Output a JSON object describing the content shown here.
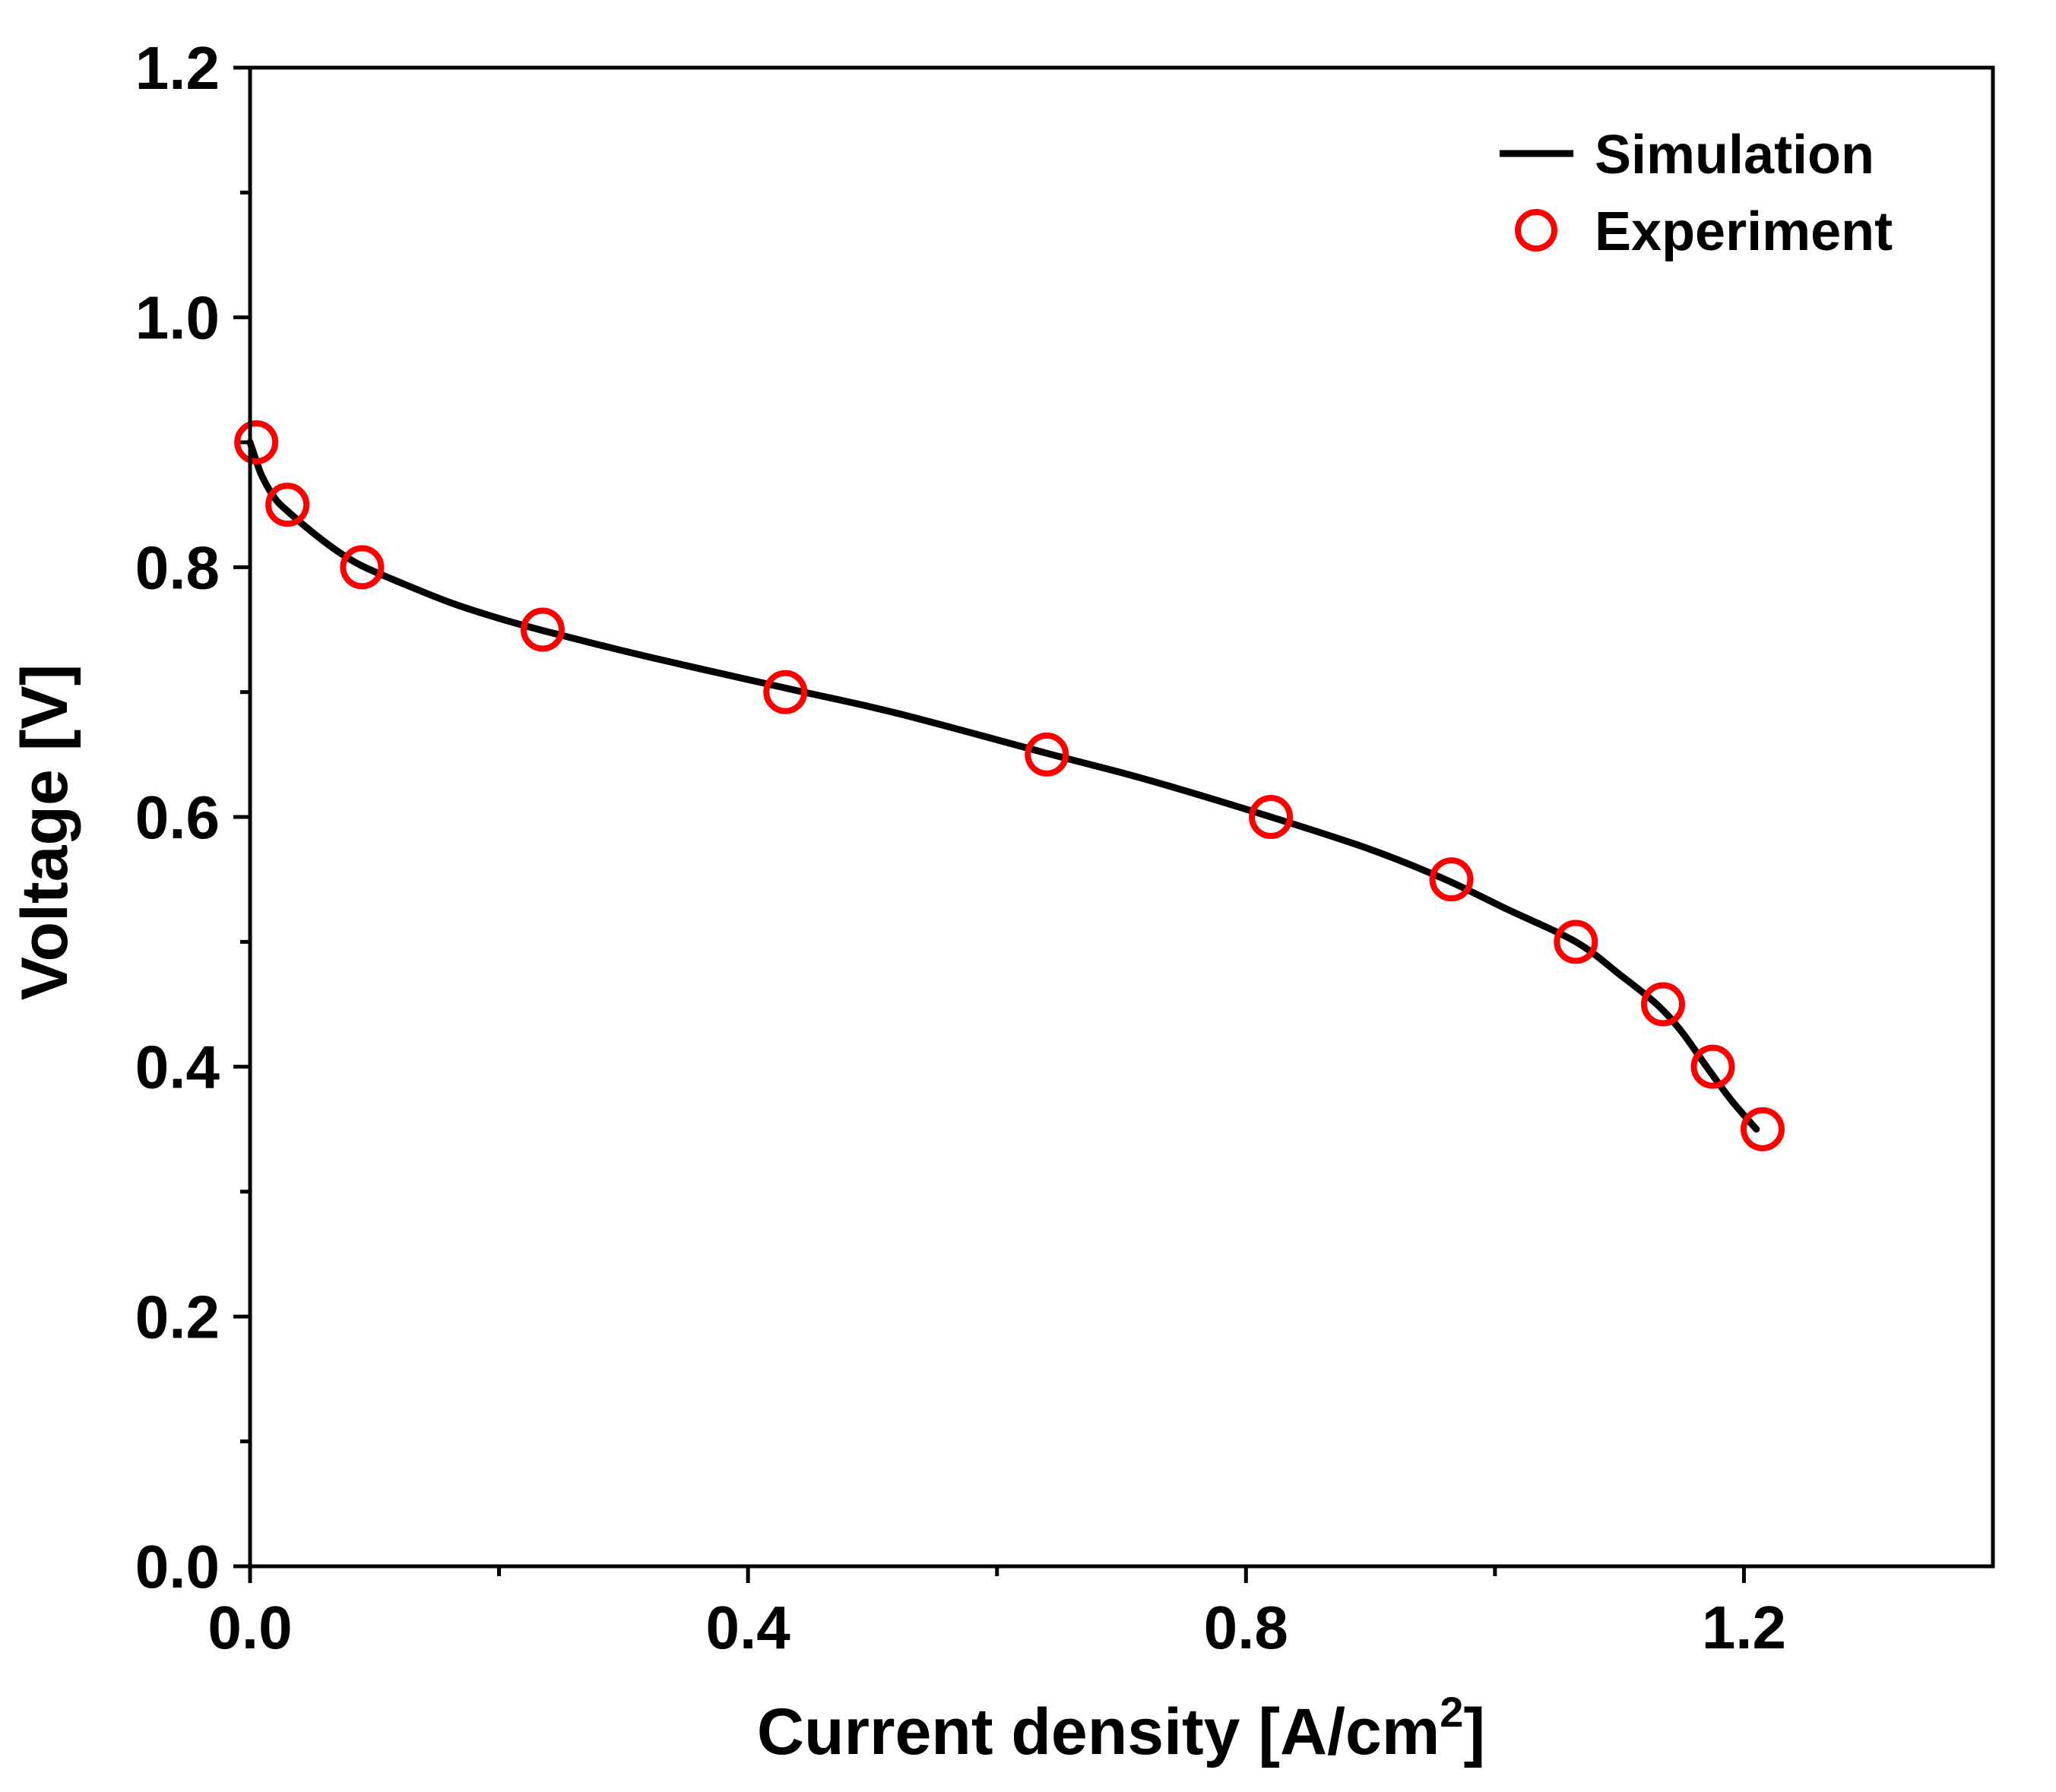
{
  "chart_data": {
    "type": "line",
    "xlabel_main": "Current density [A/cm",
    "xlabel_sup": "2",
    "xlabel_tail": "]",
    "ylabel": "Voltage [V]",
    "xlim": [
      0.0,
      1.4
    ],
    "ylim": [
      0.0,
      1.2
    ],
    "x_ticks": [
      0.0,
      0.4,
      0.8,
      1.2
    ],
    "x_tick_labels": [
      "0.0",
      "0.4",
      "0.8",
      "1.2"
    ],
    "x_minor_ticks": [
      0.2,
      0.6,
      1.0
    ],
    "y_ticks": [
      0.0,
      0.2,
      0.4,
      0.6,
      0.8,
      1.0,
      1.2
    ],
    "y_tick_labels": [
      "0.0",
      "0.2",
      "0.4",
      "0.6",
      "0.8",
      "1.0",
      "1.2"
    ],
    "y_minor_ticks": [
      0.1,
      0.3,
      0.5,
      0.7,
      0.9,
      1.1
    ],
    "legend_position": "top-right",
    "legend": {
      "simulation": "Simulation",
      "experiment": "Experiment"
    },
    "series": [
      {
        "name": "Simulation",
        "style": "line",
        "color": "#000000",
        "x": [
          0.0,
          0.005,
          0.01,
          0.02,
          0.03,
          0.05,
          0.07,
          0.09,
          0.12,
          0.16,
          0.2,
          0.24,
          0.3,
          0.36,
          0.44,
          0.52,
          0.64,
          0.72,
          0.82,
          0.9,
          0.96,
          1.01,
          1.065,
          1.1,
          1.13,
          1.15,
          1.17,
          1.19,
          1.21
        ],
        "y": [
          0.9,
          0.885,
          0.872,
          0.855,
          0.845,
          0.828,
          0.813,
          0.801,
          0.788,
          0.772,
          0.759,
          0.748,
          0.733,
          0.719,
          0.701,
          0.683,
          0.651,
          0.63,
          0.6,
          0.574,
          0.55,
          0.526,
          0.5,
          0.474,
          0.45,
          0.428,
          0.4,
          0.373,
          0.35
        ]
      },
      {
        "name": "Experiment",
        "style": "marker",
        "marker": "open-circle",
        "color": "#ff0000",
        "x": [
          0.005,
          0.03,
          0.09,
          0.235,
          0.43,
          0.64,
          0.82,
          0.965,
          1.065,
          1.135,
          1.175,
          1.215
        ],
        "y": [
          0.9,
          0.85,
          0.8,
          0.75,
          0.7,
          0.65,
          0.6,
          0.55,
          0.5,
          0.45,
          0.4,
          0.35
        ]
      }
    ]
  }
}
